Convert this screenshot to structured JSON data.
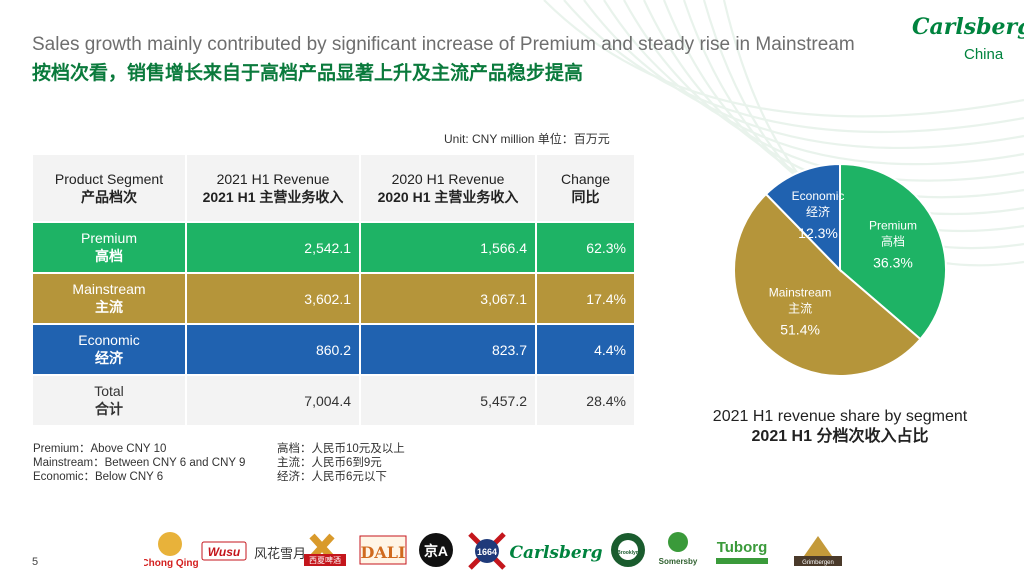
{
  "title_en": "Sales growth mainly contributed by significant increase of Premium and steady rise in Mainstream",
  "title_zh": "按档次看，销售增长来自于高档产品显著上升及主流产品稳步提高",
  "logo": {
    "word": "Carlsberg",
    "sub": "China"
  },
  "unit": "Unit: CNY million  单位：百万元",
  "table": {
    "headers": [
      {
        "en": "Product Segment",
        "zh": "产品档次"
      },
      {
        "en": "2021 H1 Revenue",
        "zh": "2021 H1 主营业务收入"
      },
      {
        "en": "2020 H1 Revenue",
        "zh": "2020 H1 主营业务收入"
      },
      {
        "en": "Change",
        "zh": "同比"
      }
    ],
    "rows": [
      {
        "en": "Premium",
        "zh": "高档",
        "r2021": "2,542.1",
        "r2020": "1,566.4",
        "change": "62.3%"
      },
      {
        "en": "Mainstream",
        "zh": "主流",
        "r2021": "3,602.1",
        "r2020": "3,067.1",
        "change": "17.4%"
      },
      {
        "en": "Economic",
        "zh": "经济",
        "r2021": "860.2",
        "r2020": "823.7",
        "change": "4.4%"
      }
    ],
    "total": {
      "en": "Total",
      "zh": "合计",
      "r2021": "7,004.4",
      "r2020": "5,457.2",
      "change": "28.4%"
    }
  },
  "notes_en": [
    "Premium：Above CNY 10",
    "Mainstream：Between CNY 6 and CNY 9",
    "Economic：Below CNY 6"
  ],
  "notes_zh": [
    "高档：人民币10元及以上",
    "主流：人民币6到9元",
    "经济：人民币6元以下"
  ],
  "chart_data": {
    "type": "pie",
    "title": "2021 H1 revenue share by segment",
    "title_zh": "2021 H1 分档次收入占比",
    "slices": [
      {
        "name": "Premium",
        "name_zh": "高档",
        "value": 36.3,
        "label": "36.3%",
        "color": "#1eb365"
      },
      {
        "name": "Mainstream",
        "name_zh": "主流",
        "value": 51.4,
        "label": "51.4%",
        "color": "#b5953a"
      },
      {
        "name": "Economic",
        "name_zh": "经济",
        "value": 12.3,
        "label": "12.3%",
        "color": "#2062b0"
      }
    ]
  },
  "page_number": "5",
  "brands": [
    "Chong Qing",
    "Wusu",
    "风花雪月",
    "西夏啤酒",
    "DALI",
    "京A",
    "1664",
    "Carlsberg",
    "Brooklyn",
    "Somersby",
    "Tuborg",
    "Grimbergen"
  ]
}
